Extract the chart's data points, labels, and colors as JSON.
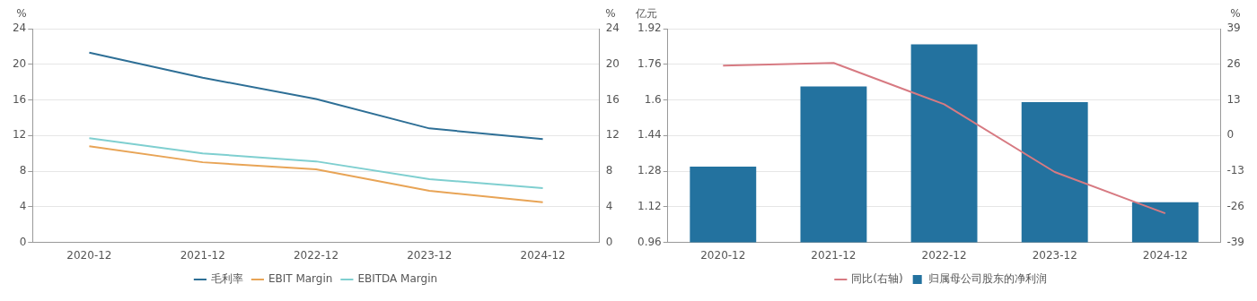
{
  "chart_data": [
    {
      "type": "line",
      "ylabel": "%",
      "y2label": "%",
      "categories": [
        "2020-12",
        "2021-12",
        "2022-12",
        "2023-12",
        "2024-12"
      ],
      "series": [
        {
          "name": "毛利率",
          "color": "#2e6f96",
          "values": [
            21.3,
            18.5,
            16.1,
            12.8,
            11.6
          ]
        },
        {
          "name": "EBIT Margin",
          "color": "#e8a456",
          "values": [
            10.8,
            9.0,
            8.2,
            5.8,
            4.5
          ]
        },
        {
          "name": "EBITDA Margin",
          "color": "#7fcfd0",
          "values": [
            11.7,
            10.0,
            9.1,
            7.1,
            6.1
          ]
        }
      ],
      "ylim": [
        0,
        24
      ],
      "yticks": [
        0,
        4,
        8,
        12,
        16,
        20,
        24
      ],
      "y2lim": [
        0,
        24
      ],
      "y2ticks": [
        0,
        4,
        8,
        12,
        16,
        20,
        24
      ],
      "grid": "y",
      "legend": "bottom",
      "marker": "none"
    },
    {
      "type": "bar",
      "ylabel": "亿元",
      "y2label": "%",
      "categories": [
        "2020-12",
        "2021-12",
        "2022-12",
        "2023-12",
        "2024-12"
      ],
      "series": [
        {
          "name": "归属母公司股东的净利润",
          "color": "#23729f",
          "values": [
            1.3,
            1.66,
            1.85,
            1.59,
            1.14
          ]
        },
        {
          "name": "同比(右轴)",
          "type": "line",
          "axis": "y2",
          "color": "#d77a82",
          "values": [
            25.5,
            26.5,
            11.4,
            -13.3,
            -28.4
          ]
        }
      ],
      "ylim": [
        0.96,
        1.92
      ],
      "yticks": [
        0.96,
        1.12,
        1.28,
        1.44,
        1.6,
        1.76,
        1.92
      ],
      "y2lim": [
        -39,
        39
      ],
      "y2ticks": [
        -39,
        -26,
        -13,
        0,
        13,
        26,
        39
      ],
      "grid": "y",
      "legend": "bottom",
      "marker": "none"
    }
  ]
}
